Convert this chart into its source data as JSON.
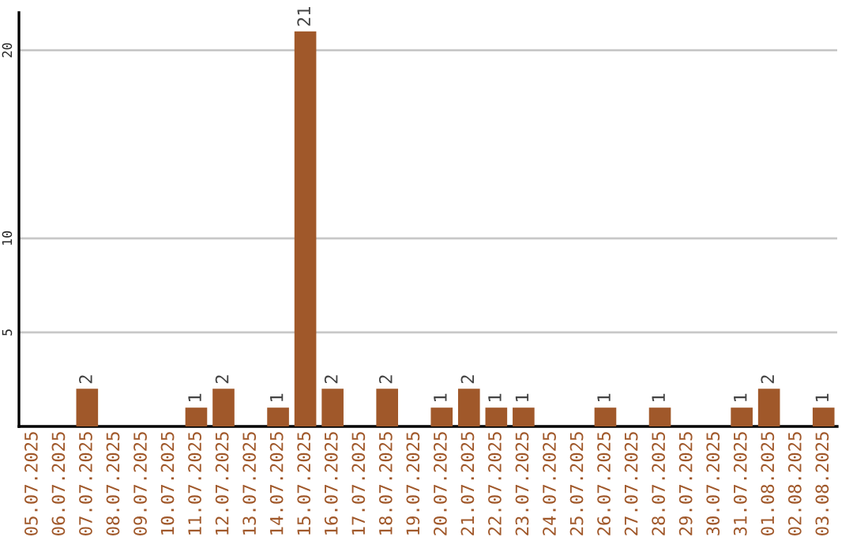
{
  "chart_data": {
    "type": "bar",
    "categories": [
      "05.07.2025",
      "06.07.2025",
      "07.07.2025",
      "08.07.2025",
      "09.07.2025",
      "10.07.2025",
      "11.07.2025",
      "12.07.2025",
      "13.07.2025",
      "14.07.2025",
      "15.07.2025",
      "16.07.2025",
      "17.07.2025",
      "18.07.2025",
      "19.07.2025",
      "20.07.2025",
      "21.07.2025",
      "22.07.2025",
      "23.07.2025",
      "24.07.2025",
      "25.07.2025",
      "26.07.2025",
      "27.07.2025",
      "28.07.2025",
      "29.07.2025",
      "30.07.2025",
      "31.07.2025",
      "01.08.2025",
      "02.08.2025",
      "03.08.2025"
    ],
    "values": [
      0,
      0,
      2,
      0,
      0,
      0,
      1,
      2,
      0,
      1,
      21,
      2,
      0,
      2,
      0,
      1,
      2,
      1,
      1,
      0,
      0,
      1,
      0,
      1,
      0,
      0,
      1,
      2,
      0,
      1
    ],
    "value_labels": [
      null,
      null,
      "2",
      null,
      null,
      null,
      "1",
      "2",
      null,
      "1",
      "21",
      "2",
      null,
      "2",
      null,
      "1",
      "2",
      "1",
      "1",
      null,
      null,
      "1",
      null,
      "1",
      null,
      null,
      "1",
      "2",
      null,
      "1"
    ],
    "color": "#a0582a",
    "ylim": [
      0,
      22
    ],
    "yticks": [
      5,
      10,
      20
    ],
    "grid": "y"
  }
}
